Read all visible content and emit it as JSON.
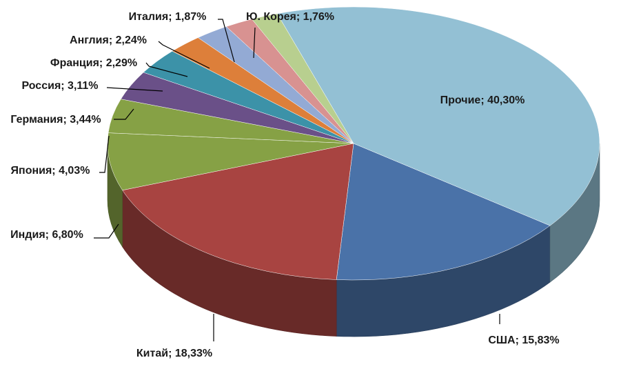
{
  "chart_data": {
    "type": "pie",
    "title": "",
    "slices": [
      {
        "name": "США",
        "value": 15.83,
        "label": "США; 15,83%",
        "color": "#4a72a8"
      },
      {
        "name": "Китай",
        "value": 18.33,
        "label": "Китай; 18,33%",
        "color": "#a84441"
      },
      {
        "name": "Индия",
        "value": 6.8,
        "label": "Индия; 6,80%",
        "color": "#86a145"
      },
      {
        "name": "Япония",
        "value": 4.03,
        "label": "Япония; 4,03%",
        "color": "#86a145"
      },
      {
        "name": "Германия",
        "value": 3.44,
        "label": "Германия; 3,44%",
        "color": "#6a5088"
      },
      {
        "name": "Россия",
        "value": 3.11,
        "label": "Россия; 3,11%",
        "color": "#3c92a8"
      },
      {
        "name": "Франция",
        "value": 2.29,
        "label": "Франция; 2,29%",
        "color": "#dd7f3a"
      },
      {
        "name": "Англия",
        "value": 2.24,
        "label": "Англия; 2,24%",
        "color": "#93aad4"
      },
      {
        "name": "Италия",
        "value": 1.87,
        "label": "Италия; 1,87%",
        "color": "#d89291"
      },
      {
        "name": "Ю. Корея",
        "value": 1.76,
        "label": "Ю. Корея; 1,76%",
        "color": "#b8cf8f"
      },
      {
        "name": "Прочие",
        "value": 40.3,
        "label": "Прочие; 40,30%",
        "color": "#a49cc6"
      }
    ],
    "last_slice_color": "#93c0d4",
    "style": "3d-pie",
    "legend": "none"
  }
}
